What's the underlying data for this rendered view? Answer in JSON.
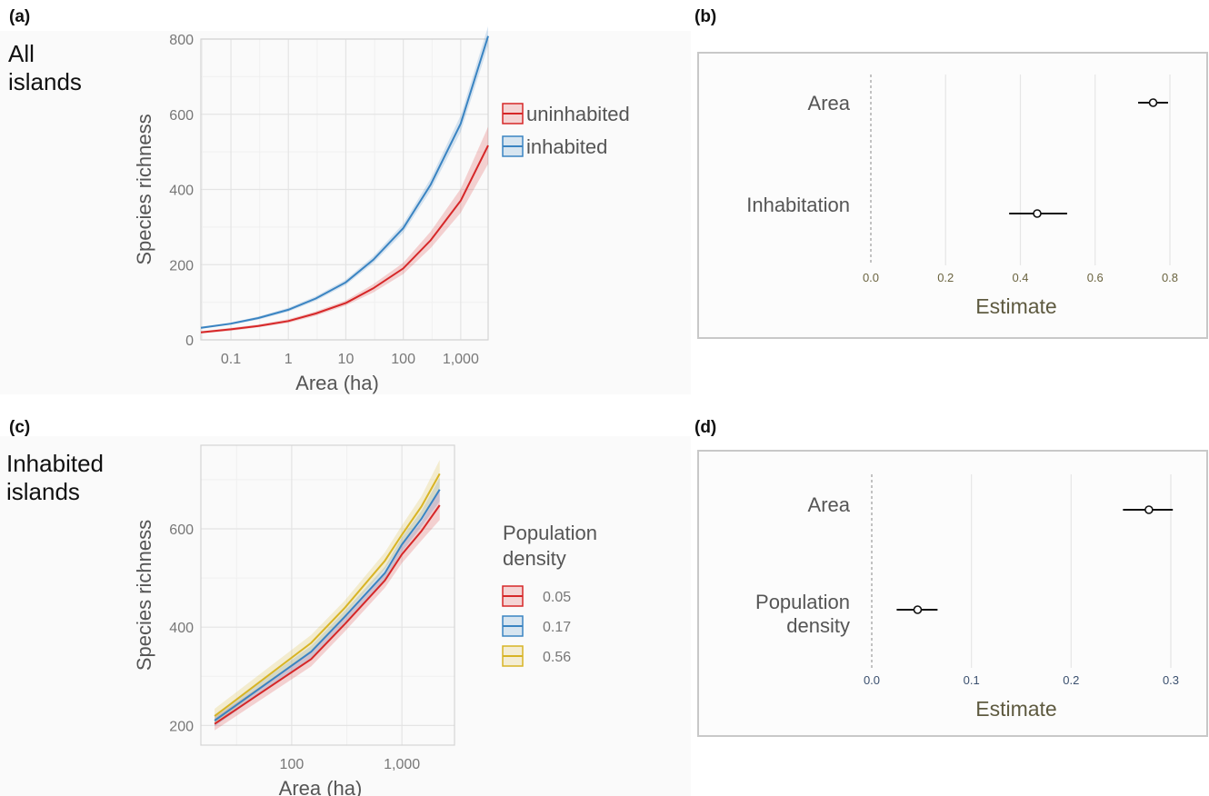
{
  "panels": {
    "a": {
      "label": "(a)",
      "side_lines": [
        "All",
        "islands"
      ]
    },
    "b": {
      "label": "(b)"
    },
    "c": {
      "label": "(c)",
      "side_lines": [
        "Inhabited",
        "islands"
      ]
    },
    "d": {
      "label": "(d)"
    }
  },
  "colors": {
    "red": "#d62728",
    "blue": "#3a84c2",
    "yellow": "#d8b425"
  },
  "chart_data": [
    {
      "id": "a",
      "type": "line",
      "xlabel": "Area (ha)",
      "ylabel": "Species richness",
      "x_scale": "log10",
      "xlim": [
        0.03,
        3000
      ],
      "ylim": [
        0,
        800
      ],
      "x_ticks": [
        0.1,
        1,
        10,
        100,
        1000
      ],
      "x_tick_labels": [
        "0.1",
        "1",
        "10",
        "100",
        "1,000"
      ],
      "y_ticks": [
        0,
        200,
        400,
        600,
        800
      ],
      "y_tick_labels": [
        "0",
        "200",
        "400",
        "600",
        "800"
      ],
      "grid": true,
      "legend_position": "right",
      "x": [
        0.03,
        0.1,
        0.3,
        1,
        3,
        10,
        30,
        100,
        300,
        1000,
        3000
      ],
      "series": [
        {
          "name": "uninhabited",
          "color": "#d62728",
          "values": [
            20,
            28,
            37,
            50,
            70,
            98,
            137,
            190,
            265,
            370,
            517
          ],
          "lower": [
            17,
            24,
            33,
            45,
            64,
            91,
            126,
            175,
            244,
            338,
            468
          ],
          "upper": [
            23,
            32,
            41,
            55,
            76,
            105,
            148,
            205,
            288,
            402,
            567
          ]
        },
        {
          "name": "inhabited",
          "color": "#3a84c2",
          "values": [
            32,
            43,
            58,
            80,
            110,
            153,
            213,
            297,
            413,
            575,
            808
          ],
          "lower": [
            29,
            40,
            54,
            75,
            104,
            146,
            204,
            285,
            397,
            553,
            782
          ],
          "upper": [
            35,
            46,
            62,
            85,
            116,
            160,
            222,
            309,
            429,
            597,
            834
          ]
        }
      ]
    },
    {
      "id": "b",
      "type": "scatter",
      "plot_kind": "coefficient_plot",
      "xlabel": "Estimate",
      "xlim": [
        0,
        0.8
      ],
      "x_ticks": [
        0,
        0.2,
        0.4,
        0.6,
        0.8
      ],
      "x_tick_labels": [
        "0.0",
        "0.2",
        "0.4",
        "0.6",
        "0.8"
      ],
      "reference_line": 0,
      "rows": [
        {
          "label": [
            "Area"
          ],
          "estimate": 0.755,
          "ci": [
            0.715,
            0.795
          ]
        },
        {
          "label": [
            "Inhabitation"
          ],
          "estimate": 0.445,
          "ci": [
            0.37,
            0.525
          ]
        }
      ]
    },
    {
      "id": "c",
      "type": "line",
      "xlabel": "Area (ha)",
      "ylabel": "Species richness",
      "x_scale": "log10",
      "xlim": [
        15,
        3000
      ],
      "ylim": [
        160,
        770
      ],
      "x_ticks": [
        100,
        1000
      ],
      "x_tick_labels": [
        "100",
        "1,000"
      ],
      "y_ticks": [
        200,
        400,
        600
      ],
      "y_tick_labels": [
        "200",
        "400",
        "600"
      ],
      "grid": true,
      "legend_title": [
        "Population",
        "density"
      ],
      "legend_position": "right",
      "x": [
        20,
        150,
        300,
        700,
        1000,
        1500,
        2200
      ],
      "series": [
        {
          "name": "0.05",
          "color": "#d62728",
          "values": [
            203,
            335,
            405,
            495,
            548,
            595,
            648
          ],
          "lower": [
            190,
            320,
            390,
            480,
            530,
            576,
            618
          ],
          "upper": [
            216,
            350,
            420,
            510,
            566,
            614,
            678
          ]
        },
        {
          "name": "0.17",
          "color": "#3a84c2",
          "values": [
            210,
            350,
            420,
            510,
            568,
            620,
            680
          ],
          "lower": [
            198,
            338,
            408,
            497,
            553,
            604,
            656
          ],
          "upper": [
            222,
            362,
            432,
            523,
            583,
            636,
            704
          ]
        },
        {
          "name": "0.56",
          "color": "#d8b425",
          "values": [
            219,
            368,
            438,
            535,
            588,
            645,
            712
          ],
          "lower": [
            204,
            352,
            423,
            518,
            569,
            624,
            684
          ],
          "upper": [
            234,
            384,
            453,
            552,
            607,
            666,
            740
          ]
        }
      ]
    },
    {
      "id": "d",
      "type": "scatter",
      "plot_kind": "coefficient_plot",
      "xlabel": "Estimate",
      "xlim": [
        0,
        0.3
      ],
      "x_ticks": [
        0,
        0.1,
        0.2,
        0.3
      ],
      "x_tick_labels": [
        "0.0",
        "0.1",
        "0.2",
        "0.3"
      ],
      "reference_line": 0,
      "rows": [
        {
          "label": [
            "Area"
          ],
          "estimate": 0.278,
          "ci": [
            0.252,
            0.302
          ]
        },
        {
          "label": [
            "Population",
            "density"
          ],
          "estimate": 0.046,
          "ci": [
            0.025,
            0.066
          ]
        }
      ]
    }
  ]
}
